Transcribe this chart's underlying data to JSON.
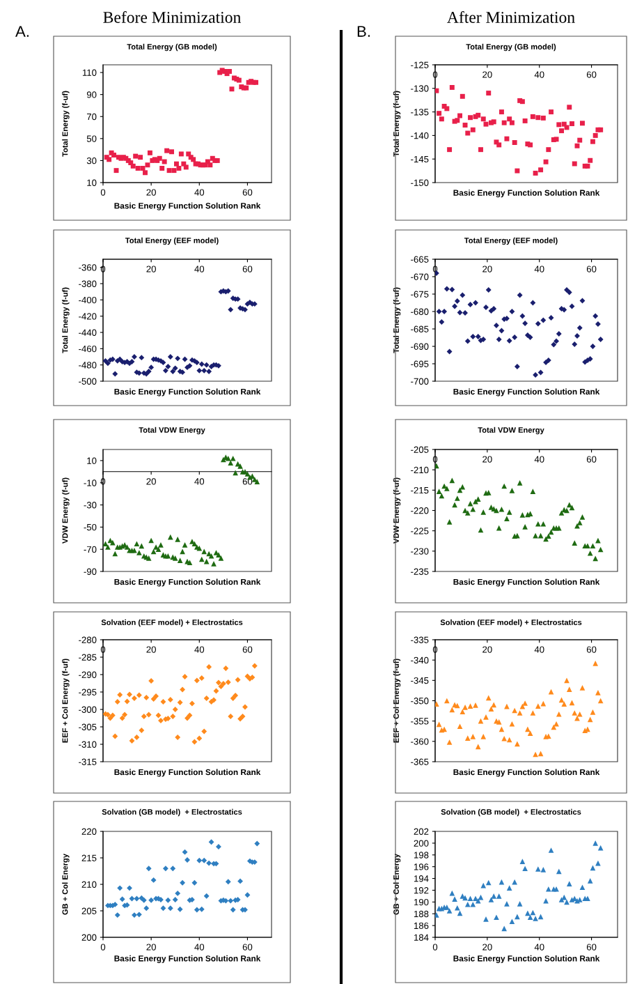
{
  "chart_data": [
    {
      "type": "scatter",
      "title": "Total Energy (GB model)",
      "xlabel": "Basic Energy Function Solution Rank",
      "ylabel": "Total Energy (f-uf)",
      "annotations": [
        "Before Minimization",
        "A."
      ],
      "marker": "square",
      "xlim": [
        0,
        70
      ],
      "xticks": [
        0,
        20,
        40,
        60
      ],
      "ylim": [
        10,
        117
      ],
      "yticks": [
        10,
        30,
        50,
        70,
        90,
        110
      ],
      "series": [
        {
          "color": "#e8204a",
          "x": [
            1.5,
            2.5,
            3.5,
            4.5,
            5.5,
            6.5,
            7.5,
            8.5,
            9.5,
            10.5,
            11.5,
            12.5,
            13.5,
            14.5,
            15.5,
            16.5,
            17.5,
            18.5,
            19.5,
            20.5,
            21.5,
            22.5,
            23.5,
            24.5,
            25.5,
            26.5,
            27.5,
            28.5,
            29.5,
            30.5,
            31.5,
            32.5,
            33.5,
            34.5,
            35.5,
            36.5,
            37.5,
            38.5,
            39.5,
            40.5,
            41.5,
            42.5,
            43.5,
            44.5,
            45.5,
            46.5,
            47.5,
            48.5,
            49.5,
            50.5,
            51.5,
            52.5,
            53.5,
            54.5,
            55.5,
            56.5,
            57.5,
            58.5,
            59.5,
            60.5,
            61.5,
            62.5,
            63.5
          ],
          "values": [
            33,
            31,
            37,
            35,
            21,
            33,
            32,
            33,
            32,
            30,
            28,
            25,
            34,
            23,
            33,
            23,
            19,
            26,
            37,
            30,
            31,
            30,
            32,
            23,
            29,
            39,
            21,
            38,
            21,
            27,
            23,
            36,
            27,
            24,
            36,
            33,
            31,
            27,
            27,
            26,
            26,
            26,
            29,
            26,
            32,
            30,
            30,
            110,
            112,
            111,
            109,
            111,
            95,
            105,
            104,
            103,
            97,
            96,
            96,
            101,
            102,
            101,
            101
          ]
        }
      ]
    },
    {
      "type": "scatter",
      "title": "Total Energy (GB model)",
      "xlabel": "Basic Energy Function Solution Rank",
      "ylabel": "Total Energy (f-uf)",
      "annotations": [
        "After Minimization",
        "B."
      ],
      "marker": "square",
      "xlim": [
        0,
        70
      ],
      "xticks": [
        0,
        20,
        40,
        60
      ],
      "ylim": [
        -150,
        -125
      ],
      "yticks": [
        -150,
        -145,
        -140,
        -135,
        -130,
        -125
      ],
      "series": [
        {
          "color": "#e8204a",
          "x": [
            0.5,
            1.5,
            2.5,
            3.5,
            4.5,
            5.5,
            6.5,
            7.5,
            8.5,
            9.5,
            10.5,
            11.5,
            12.5,
            13.5,
            14.5,
            15.5,
            16.5,
            17.5,
            18.5,
            19.5,
            20.5,
            21.5,
            22.5,
            23.5,
            24.5,
            25.5,
            26.5,
            27.5,
            28.5,
            29.5,
            30.5,
            31.5,
            32.5,
            33.5,
            34.5,
            35.5,
            36.5,
            37.5,
            38.5,
            39.5,
            40.5,
            41.5,
            42.5,
            43.5,
            44.5,
            45.5,
            46.5,
            47.5,
            48.5,
            49.5,
            50.5,
            51.5,
            52.5,
            53.5,
            54.5,
            55.5,
            56.5,
            57.5,
            58.5,
            59.5,
            60.5,
            61.5,
            62.5,
            63.5
          ],
          "values": [
            -130.5,
            -135.3,
            -136.5,
            -133.8,
            -134.3,
            -143,
            -129.8,
            -137,
            -136.8,
            -135.8,
            -131.7,
            -137.8,
            -139.5,
            -136.2,
            -138.8,
            -136,
            -135.7,
            -143,
            -136.5,
            -137.6,
            -131,
            -137.3,
            -137.1,
            -141.4,
            -142,
            -135,
            -137.3,
            -140.7,
            -136.5,
            -137.3,
            -141.5,
            -147.5,
            -132.6,
            -132.8,
            -136.9,
            -141.8,
            -142,
            -136,
            -148,
            -136.2,
            -147.3,
            -136.3,
            -145.6,
            -143,
            -135,
            -140.9,
            -140.8,
            -137.7,
            -139,
            -137.6,
            -138.3,
            -134,
            -137.5,
            -146,
            -142.2,
            -141,
            -137.4,
            -146.5,
            -146.5,
            -145.3,
            -141.3,
            -140,
            -138.8,
            -138.8
          ]
        }
      ]
    },
    {
      "type": "scatter",
      "title": "Total Energy (EEF model)",
      "xlabel": "Basic Energy Function Solution Rank",
      "ylabel": "Total Energy (f-uf)",
      "marker": "diamond",
      "xlim": [
        0,
        70
      ],
      "xticks": [
        0,
        20,
        40,
        60
      ],
      "ylim": [
        -500,
        -350
      ],
      "yticks": [
        -500,
        -480,
        -460,
        -440,
        -420,
        -400,
        -380,
        -360
      ],
      "series": [
        {
          "color": "#1a1f6e",
          "x": [
            1,
            2,
            3,
            4,
            5,
            6,
            7,
            8,
            9,
            10,
            11,
            12,
            13,
            14,
            15,
            16,
            17,
            18,
            19,
            20,
            21,
            22,
            23,
            24,
            25,
            26,
            27,
            28,
            29,
            30,
            31,
            32,
            33,
            34,
            35,
            36,
            37,
            38,
            39,
            40,
            41,
            42,
            43,
            44,
            45,
            46,
            47,
            48,
            49,
            50,
            51,
            52,
            53,
            54,
            55,
            56,
            57,
            58,
            59,
            60,
            61,
            62,
            63
          ],
          "values": [
            -475,
            -478,
            -474,
            -473,
            -491,
            -475,
            -473,
            -476,
            -477,
            -476,
            -478,
            -476,
            -470,
            -489,
            -490,
            -471,
            -490,
            -491,
            -488,
            -483,
            -473,
            -473,
            -474,
            -475,
            -477,
            -487,
            -482,
            -470,
            -488,
            -484,
            -472,
            -488,
            -489,
            -473,
            -483,
            -481,
            -474,
            -475,
            -477,
            -487,
            -479,
            -487,
            -480,
            -488,
            -482,
            -480,
            -480,
            -481,
            -390,
            -389,
            -390,
            -389,
            -412,
            -398,
            -399,
            -399,
            -410,
            -411,
            -412,
            -405,
            -403,
            -405,
            -405
          ]
        }
      ]
    },
    {
      "type": "scatter",
      "title": "Total Energy (EEF model)",
      "xlabel": "Basic Energy Function Solution Rank",
      "ylabel": "Total Energy (f-uf)",
      "marker": "diamond",
      "xlim": [
        0,
        70
      ],
      "xticks": [
        0,
        20,
        40,
        60
      ],
      "ylim": [
        -700,
        -665
      ],
      "yticks": [
        -700,
        -695,
        -690,
        -685,
        -680,
        -675,
        -670,
        -665
      ],
      "series": [
        {
          "color": "#1a1f6e",
          "x": [
            0.5,
            1.5,
            2.5,
            3.5,
            4.5,
            5.5,
            6.5,
            7.5,
            8.5,
            9.5,
            10.5,
            11.5,
            12.5,
            13.5,
            14.5,
            15.5,
            16.5,
            17.5,
            18.5,
            19.5,
            20.5,
            21.5,
            22.5,
            23.5,
            24.5,
            25.5,
            26.5,
            27.5,
            28.5,
            29.5,
            30.5,
            31.5,
            32.5,
            33.5,
            34.5,
            35.5,
            36.5,
            37.5,
            38.5,
            39.5,
            40.5,
            41.5,
            42.5,
            43.5,
            44.5,
            45.5,
            46.5,
            47.5,
            48.5,
            49.5,
            50.5,
            51.5,
            52.5,
            53.5,
            54.5,
            55.5,
            56.5,
            57.5,
            58.5,
            59.5,
            60.5,
            61.5,
            62.5,
            63.5
          ],
          "values": [
            -669,
            -680,
            -683,
            -680,
            -673.5,
            -691.5,
            -673.7,
            -678.5,
            -677,
            -680.3,
            -675.3,
            -680.4,
            -688.5,
            -678,
            -687.2,
            -677.5,
            -687.2,
            -688.3,
            -688,
            -678.8,
            -673.8,
            -679.8,
            -679.2,
            -684,
            -688,
            -685.5,
            -682.2,
            -682,
            -688.4,
            -680,
            -687.4,
            -695.8,
            -675.3,
            -681.3,
            -683.4,
            -686.8,
            -687.4,
            -677.5,
            -698.2,
            -683.5,
            -697.5,
            -682.5,
            -694.6,
            -694,
            -681.8,
            -689.5,
            -688.5,
            -686.4,
            -679.2,
            -679.5,
            -673.8,
            -674.5,
            -678.5,
            -689.4,
            -687,
            -684.7,
            -676.9,
            -694.5,
            -694,
            -693.6,
            -690,
            -681.3,
            -683.6,
            -688
          ]
        }
      ]
    },
    {
      "type": "scatter",
      "title": "Total VDW Energy",
      "xlabel": "Basic Energy Function Solution Rank",
      "ylabel": "VDW Energy (f-uf)",
      "marker": "triangle",
      "xlim": [
        0,
        70
      ],
      "xticks": [
        0,
        20,
        40,
        60
      ],
      "ylim": [
        -90,
        20
      ],
      "yticks": [
        -90,
        -70,
        -50,
        -30,
        -10,
        10
      ],
      "series": [
        {
          "color": "#1f6b12",
          "x": [
            1,
            2,
            3,
            4,
            5,
            6,
            7,
            8,
            9,
            10,
            11,
            12,
            13,
            14,
            15,
            16,
            17,
            18,
            19,
            20,
            21,
            22,
            23,
            24,
            25,
            26,
            27,
            28,
            29,
            30,
            31,
            32,
            33,
            34,
            35,
            36,
            37,
            38,
            39,
            40,
            41,
            42,
            43,
            44,
            45,
            46,
            47,
            48,
            49,
            50,
            51,
            52,
            53,
            54,
            55,
            56,
            57,
            58,
            59,
            60,
            61,
            62,
            63,
            64
          ],
          "values": [
            -65,
            -68,
            -62,
            -64,
            -74,
            -68,
            -68,
            -67,
            -66,
            -68,
            -71,
            -71,
            -71,
            -65,
            -73,
            -67,
            -76,
            -77,
            -78,
            -62,
            -72,
            -68,
            -70,
            -66,
            -75,
            -76,
            -76,
            -59,
            -77,
            -78,
            -61,
            -80,
            -72,
            -66,
            -81,
            -82,
            -63,
            -65,
            -68,
            -69,
            -79,
            -72,
            -81,
            -74,
            -76,
            -83,
            -73,
            -75,
            -78,
            11,
            13,
            12,
            8,
            12,
            -1,
            7,
            5,
            0,
            0,
            -2,
            -5,
            -4,
            -7,
            -9
          ]
        }
      ]
    },
    {
      "type": "scatter",
      "title": "Total VDW Energy",
      "xlabel": "Basic Energy Function Solution Rank",
      "ylabel": "VDW Energy (f-uf)",
      "marker": "triangle",
      "xlim": [
        0,
        70
      ],
      "xticks": [
        0,
        20,
        40,
        60
      ],
      "ylim": [
        -235,
        -205
      ],
      "yticks": [
        -235,
        -230,
        -225,
        -220,
        -215,
        -210,
        -205
      ],
      "series": [
        {
          "color": "#1f6b12",
          "x": [
            0.5,
            1.5,
            2.5,
            3.5,
            4.5,
            5.5,
            6.5,
            7.5,
            8.5,
            9.5,
            10.5,
            11.5,
            12.5,
            13.5,
            14.5,
            15.5,
            16.5,
            17.5,
            18.5,
            19.5,
            20.5,
            21.5,
            22.5,
            23.5,
            24.5,
            25.5,
            26.5,
            27.5,
            28.5,
            29.5,
            30.5,
            31.5,
            32.5,
            33.5,
            34.5,
            35.5,
            36.5,
            37.5,
            38.5,
            39.5,
            40.5,
            41.5,
            42.5,
            43.5,
            44.5,
            45.5,
            46.5,
            47.5,
            48.5,
            49.5,
            50.5,
            51.5,
            52.5,
            53.5,
            54.5,
            55.5,
            56.5,
            57.5,
            58.5,
            59.5,
            60.5,
            61.5,
            62.5,
            63.5
          ],
          "values": [
            -209,
            -215.3,
            -216.4,
            -214,
            -214.6,
            -222.8,
            -212.6,
            -218.6,
            -217,
            -215,
            -214.2,
            -220,
            -220.6,
            -218.3,
            -219.7,
            -217.8,
            -217.2,
            -224.8,
            -220.4,
            -215.7,
            -215.6,
            -219.2,
            -219.6,
            -220,
            -224.3,
            -219.7,
            -214,
            -222,
            -220.4,
            -215.1,
            -226.3,
            -226.2,
            -213.2,
            -221.1,
            -224,
            -221,
            -220.8,
            -215.3,
            -226.2,
            -223.3,
            -226.2,
            -223.3,
            -227,
            -226.3,
            -225.3,
            -224.3,
            -224.3,
            -224.3,
            -220.6,
            -219.8,
            -220,
            -218.6,
            -219.3,
            -228,
            -223.8,
            -223,
            -221.6,
            -228.7,
            -228.7,
            -230.5,
            -228.7,
            -231.8,
            -227.4,
            -229.6
          ]
        }
      ]
    },
    {
      "type": "scatter",
      "title": "Solvation (EEF model) + Electrostatics",
      "xlabel": "Basic Energy Function Solution Rank",
      "ylabel": "EEF + Col Energy (f-uf)",
      "marker": "diamond",
      "xlim": [
        0,
        70
      ],
      "xticks": [
        0,
        20,
        40,
        60
      ],
      "ylim": [
        -315,
        -280
      ],
      "yticks": [
        -315,
        -310,
        -305,
        -300,
        -295,
        -290,
        -285,
        -280
      ],
      "series": [
        {
          "color": "#ff8a1c",
          "x": [
            1,
            2,
            3,
            4,
            5,
            6,
            7,
            8,
            9,
            10,
            11,
            12,
            13,
            14,
            15,
            16,
            17,
            18,
            19,
            20,
            21,
            22,
            23,
            24,
            25,
            26,
            27,
            28,
            29,
            30,
            31,
            32,
            33,
            34,
            35,
            36,
            37,
            38,
            39,
            40,
            41,
            42,
            43,
            44,
            45,
            46,
            47,
            48,
            49,
            50,
            51,
            52,
            53,
            54,
            55,
            56,
            57,
            58,
            59,
            60,
            61,
            62,
            63
          ],
          "values": [
            -301.3,
            -301.5,
            -302.5,
            -301.7,
            -307.7,
            -297.8,
            -295.8,
            -302.5,
            -301.5,
            -297.7,
            -295.7,
            -309,
            -296.8,
            -308,
            -295.9,
            -306,
            -302,
            -296.6,
            -301.5,
            -291.8,
            -297,
            -296.2,
            -301.7,
            -303.2,
            -297.8,
            -302.8,
            -302.6,
            -297.2,
            -302,
            -300,
            -308,
            -298,
            -294.3,
            -290.6,
            -302.5,
            -301.7,
            -298.3,
            -309.3,
            -291.7,
            -308.3,
            -291,
            -306.3,
            -296.8,
            -287.8,
            -297.8,
            -297.3,
            -294.7,
            -292.3,
            -293.4,
            -292.6,
            -288.2,
            -292.2,
            -302,
            -296.8,
            -296,
            -291.5,
            -302.7,
            -302,
            -299.3,
            -290.5,
            -291.2,
            -290.8,
            -287.5
          ]
        }
      ]
    },
    {
      "type": "scatter",
      "title": "Solvation (EEF model) + Electrostatics",
      "xlabel": "Basic Energy Function Solution Rank",
      "ylabel": "EEF + Col Energy (f-uf)",
      "marker": "triangle",
      "xlim": [
        0,
        70
      ],
      "xticks": [
        0,
        20,
        40,
        60
      ],
      "ylim": [
        -365,
        -335
      ],
      "yticks": [
        -365,
        -360,
        -355,
        -350,
        -345,
        -340,
        -335
      ],
      "series": [
        {
          "color": "#ff8a1c",
          "x": [
            0.5,
            1.5,
            2.5,
            3.5,
            4.5,
            5.5,
            6.5,
            7.5,
            8.5,
            9.5,
            10.5,
            11.5,
            12.5,
            13.5,
            14.5,
            15.5,
            16.5,
            17.5,
            18.5,
            19.5,
            20.5,
            21.5,
            22.5,
            23.5,
            24.5,
            25.5,
            26.5,
            27.5,
            28.5,
            29.5,
            30.5,
            31.5,
            32.5,
            33.5,
            34.5,
            35.5,
            36.5,
            37.5,
            38.5,
            39.5,
            40.5,
            41.5,
            42.5,
            43.5,
            44.5,
            45.5,
            46.5,
            47.5,
            48.5,
            49.5,
            50.5,
            51.5,
            52.5,
            53.5,
            54.5,
            55.5,
            56.5,
            57.5,
            58.5,
            59.5,
            60.5,
            61.5,
            62.5,
            63.5
          ],
          "values": [
            -350.8,
            -355.8,
            -357.2,
            -357,
            -350,
            -360.2,
            -352.2,
            -351,
            -351.2,
            -356.3,
            -352.7,
            -351.6,
            -359.2,
            -351.3,
            -358.8,
            -351.1,
            -361.3,
            -355,
            -358.8,
            -354,
            -349.3,
            -352,
            -351,
            -355,
            -355.2,
            -357,
            -359.3,
            -351.4,
            -359.6,
            -355.7,
            -352.4,
            -360.6,
            -353,
            -351.4,
            -350.6,
            -357,
            -358,
            -353,
            -363.2,
            -351.3,
            -363,
            -350.7,
            -358.8,
            -358.7,
            -347.8,
            -356.5,
            -355.7,
            -353.3,
            -349.8,
            -350.8,
            -345,
            -347.2,
            -350.5,
            -353,
            -354.3,
            -353.3,
            -346.8,
            -357.3,
            -357,
            -354.6,
            -352.8,
            -340.8,
            -348,
            -350
          ]
        }
      ]
    },
    {
      "type": "scatter",
      "title": "Solvation (GB model)  + Electrostatics",
      "xlabel": "Basic Energy Function Solution Rank",
      "ylabel": "GB + Col Energy",
      "marker": "diamond",
      "xlim": [
        0,
        70
      ],
      "xticks": [
        0,
        20,
        40,
        60
      ],
      "ylim": [
        200,
        220
      ],
      "yticks": [
        200,
        205,
        210,
        215,
        220
      ],
      "series": [
        {
          "color": "#2f7fc1",
          "x": [
            2,
            3,
            4,
            5,
            6,
            7,
            8,
            9,
            10,
            11,
            12,
            13,
            14,
            15,
            16,
            17,
            18,
            19,
            20,
            21,
            22,
            23,
            24,
            25,
            26,
            27,
            28,
            29,
            30,
            31,
            32,
            33,
            34,
            35,
            36,
            37,
            38,
            39,
            40,
            41,
            42,
            43,
            44,
            45,
            46,
            47,
            48,
            49,
            50,
            51,
            52,
            53,
            54,
            55,
            56,
            57,
            58,
            59,
            60,
            61,
            62,
            63,
            64
          ],
          "values": [
            206,
            206,
            206,
            206.2,
            204.2,
            209.3,
            207.2,
            206,
            206.1,
            209.3,
            207.3,
            204.2,
            207.3,
            204.3,
            207.4,
            207,
            205.5,
            213,
            207,
            210.8,
            207.3,
            207.3,
            207.1,
            205.5,
            213,
            207,
            205.5,
            213,
            207.1,
            208.3,
            205.3,
            210.3,
            216.1,
            214.6,
            207,
            207.1,
            210.3,
            205.2,
            214.5,
            205.3,
            214.5,
            207.8,
            214,
            218,
            213.9,
            213.9,
            217.1,
            206.9,
            207,
            206.9,
            210.5,
            206.9,
            205.2,
            207,
            207.1,
            210.6,
            205.2,
            205.2,
            208,
            214.4,
            214.2,
            214.2,
            217.7
          ]
        }
      ]
    },
    {
      "type": "scatter",
      "title": "Solvation (GB model)  + Electrostatics",
      "xlabel": "Basic Energy Function Solution Rank",
      "ylabel": "GB + Col Energy",
      "marker": "triangle",
      "xlim": [
        0,
        70
      ],
      "xticks": [
        0,
        20,
        40,
        60
      ],
      "ylim": [
        184,
        202
      ],
      "yticks": [
        184,
        186,
        188,
        190,
        192,
        194,
        196,
        198,
        200,
        202
      ],
      "series": [
        {
          "color": "#2f7fc1",
          "x": [
            0.5,
            1.5,
            2.5,
            3.5,
            4.5,
            5.5,
            6.5,
            7.5,
            8.5,
            9.5,
            10.5,
            11.5,
            12.5,
            13.5,
            14.5,
            15.5,
            16.5,
            17.5,
            18.5,
            19.5,
            20.5,
            21.5,
            22.5,
            23.5,
            24.5,
            25.5,
            26.5,
            27.5,
            28.5,
            29.5,
            30.5,
            31.5,
            32.5,
            33.5,
            34.5,
            35.5,
            36.5,
            37.5,
            38.5,
            39.5,
            40.5,
            41.5,
            42.5,
            43.5,
            44.5,
            45.5,
            46.5,
            47.5,
            48.5,
            49.5,
            50.5,
            51.5,
            52.5,
            53.5,
            54.5,
            55.5,
            56.5,
            57.5,
            58.5,
            59.5,
            60.5,
            61.5,
            62.5,
            63.5
          ],
          "values": [
            187.8,
            188.9,
            188.9,
            189.1,
            189.1,
            188.5,
            191.5,
            190.5,
            189,
            188.1,
            191,
            190.7,
            189.6,
            190.6,
            189.6,
            190.6,
            190.2,
            190.8,
            192.8,
            187.1,
            193.3,
            190.4,
            191,
            187.4,
            191,
            193.4,
            185.5,
            189.7,
            192.4,
            186.7,
            193.4,
            187.5,
            189.7,
            196.9,
            195.7,
            188.1,
            187.4,
            188.2,
            187.2,
            195.6,
            187.5,
            195.5,
            190.2,
            192.2,
            198.8,
            192.2,
            192.2,
            195.2,
            190.4,
            190.8,
            190,
            193.1,
            190.4,
            190.6,
            190.2,
            190.4,
            192.5,
            190.6,
            190.6,
            193.6,
            195.8,
            200,
            196.6,
            199.2
          ]
        }
      ]
    }
  ]
}
